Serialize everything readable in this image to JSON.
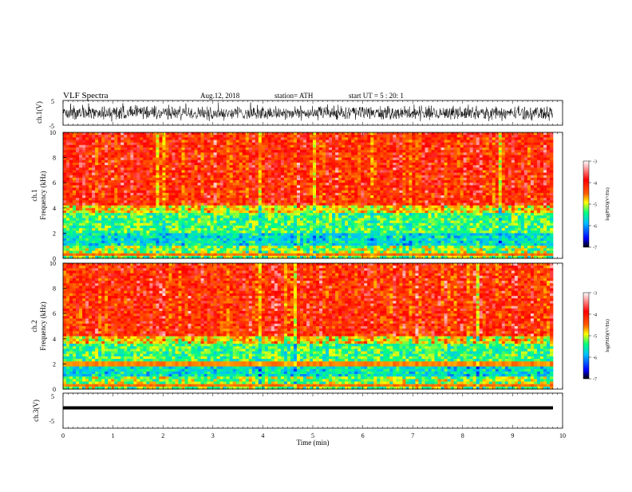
{
  "header": {
    "title": "VLF  Spectra",
    "date": "Aug.12, 2018",
    "station": "station= ATH",
    "start_ut": "start  UT  =    5  : 20: 1"
  },
  "colors": {
    "spectrogram_scale": [
      "#000000",
      "#0000ff",
      "#00bfff",
      "#00ff80",
      "#ffff00",
      "#ff6000",
      "#ff0000",
      "#ffffff"
    ]
  },
  "chart_data": [
    {
      "type": "line",
      "ylabel": "ch.1(V)",
      "ylim": [
        -5,
        5
      ],
      "yticks": [
        "5",
        "-5"
      ],
      "xlim": [
        0,
        10
      ]
    },
    {
      "type": "heatmap",
      "ylabel_channel": "ch.1",
      "ylabel": "Frequency  (kHz)",
      "ylim": [
        0,
        10
      ],
      "yticks": [
        "0",
        "2",
        "4",
        "6",
        "8",
        "10"
      ],
      "colorbar": {
        "label": "log(PSD)(V²/Hz)",
        "range": [
          -7,
          -3
        ],
        "ticks": [
          "-3",
          "-4",
          "-5",
          "-6",
          "-7"
        ]
      }
    },
    {
      "type": "heatmap",
      "ylabel_channel": "ch.2",
      "ylabel": "Frequency  (kHz)",
      "ylim": [
        0,
        10
      ],
      "yticks": [
        "0",
        "2",
        "4",
        "6",
        "8",
        "10"
      ],
      "colorbar": {
        "label": "log(PSD)(V²/Hz)",
        "range": [
          -7,
          -3
        ],
        "ticks": [
          "-3",
          "-4",
          "-5",
          "-6",
          "-7"
        ]
      }
    },
    {
      "type": "line",
      "ylabel": "ch.3(V)",
      "ylim": [
        -5,
        5
      ],
      "yticks": [
        "5",
        "-5"
      ],
      "xlabel": "Time  (min)",
      "xlim": [
        0,
        10
      ],
      "xticks": [
        "0",
        "1",
        "2",
        "3",
        "4",
        "5",
        "6",
        "7",
        "8",
        "9",
        "10"
      ]
    }
  ]
}
